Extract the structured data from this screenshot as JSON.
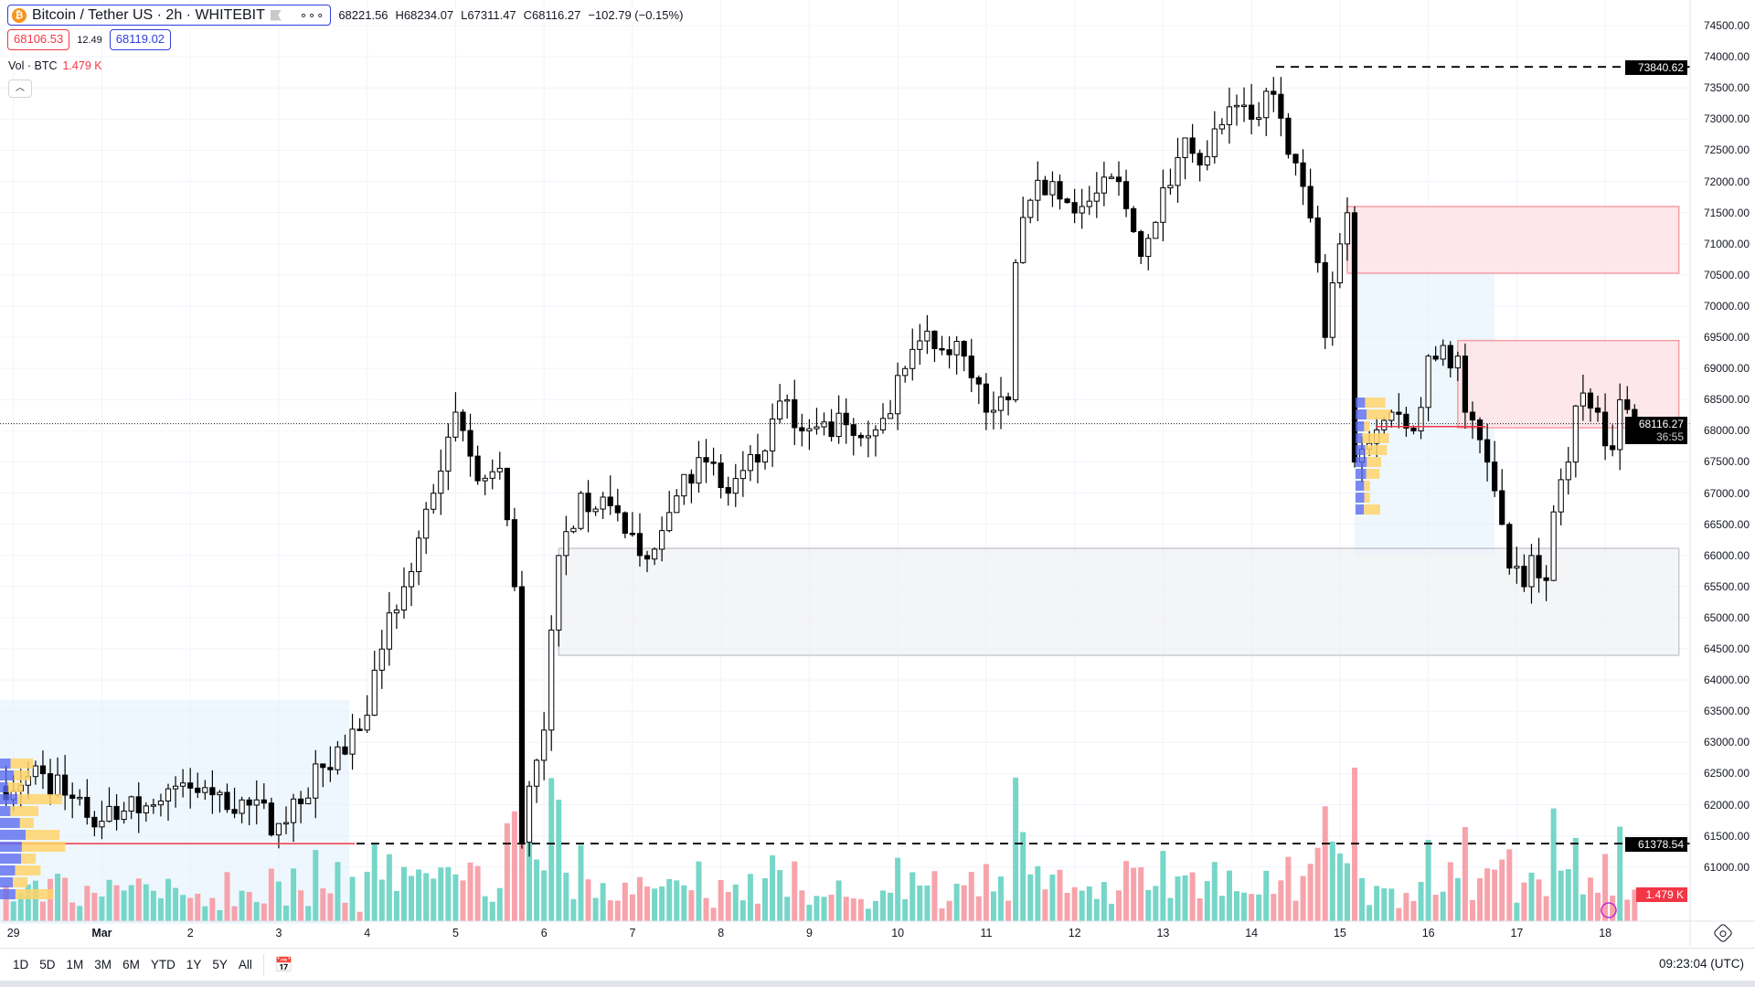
{
  "header": {
    "symbol_title": "Bitcoin / Tether US · 2h · WHITEBIT",
    "more": "∘∘∘",
    "open": "68221.56",
    "high": "H68234.07",
    "low": "L67311.47",
    "close": "C68116.27",
    "change": "−102.79 (−0.15%)"
  },
  "quote": {
    "bid": "68106.53",
    "spread": "12.49",
    "ask": "68119.02"
  },
  "volume_legend": {
    "label": "Vol · BTC",
    "value": "1.479 K"
  },
  "price_axis": {
    "ticks": [
      "74500.00",
      "74000.00",
      "73500.00",
      "73000.00",
      "72500.00",
      "72000.00",
      "71500.00",
      "71000.00",
      "70500.00",
      "70000.00",
      "69500.00",
      "69000.00",
      "68500.00",
      "68000.00",
      "67500.00",
      "67000.00",
      "66500.00",
      "66000.00",
      "65500.00",
      "65000.00",
      "64500.00",
      "64000.00",
      "63500.00",
      "63000.00",
      "62500.00",
      "62000.00",
      "61500.00",
      "61000.00"
    ],
    "high_tag": "73840.62",
    "current_tag": "68116.27",
    "countdown": "36:55",
    "low_tag": "61378.54",
    "volume_tag": "1.479 K"
  },
  "time_axis": {
    "labels": [
      "29",
      "Mar",
      "2",
      "3",
      "4",
      "5",
      "6",
      "7",
      "8",
      "9",
      "10",
      "11",
      "12",
      "13",
      "14",
      "15",
      "16",
      "17",
      "18"
    ]
  },
  "toolbar": {
    "ranges": [
      "1D",
      "5D",
      "1M",
      "3M",
      "6M",
      "YTD",
      "1Y",
      "5Y",
      "All"
    ],
    "clock": "09:23:04 (UTC)"
  },
  "colors": {
    "up_volume": "#76d6c8",
    "down_volume": "#f7a3ab",
    "accent": "#2f3fe0",
    "down": "#f23645",
    "zone_red": "#f7525f",
    "zone_gray": "#9598a1"
  },
  "chart_data": {
    "type": "candlestick",
    "interval": "2h",
    "ylim": [
      60800,
      74700
    ],
    "price_path": [
      [
        "Feb 28 20:00",
        62300
      ],
      [
        "Feb 29 08:00",
        62500
      ],
      [
        "Feb 29 20:00",
        61800
      ],
      [
        "Mar 1 06:00",
        61900
      ],
      [
        "Mar 1 14:00",
        62000
      ],
      [
        "Mar 1 20:00",
        62300
      ],
      [
        "Mar 2 08:00",
        62200
      ],
      [
        "Mar 3 00:00",
        61700
      ],
      [
        "Mar 3 12:00",
        62600
      ],
      [
        "Mar 3 22:00",
        63200
      ],
      [
        "Mar 4 04:00",
        64500
      ],
      [
        "Mar 4 10:00",
        65500
      ],
      [
        "Mar 4 18:00",
        67000
      ],
      [
        "Mar 4 22:00",
        67900
      ],
      [
        "Mar 5 00:00",
        68300
      ],
      [
        "Mar 5 06:00",
        67200
      ],
      [
        "Mar 5 12:00",
        67400
      ],
      [
        "Mar 5 16:00",
        65500
      ],
      [
        "Mar 5 18:00",
        61400
      ],
      [
        "Mar 5 20:00",
        62300
      ],
      [
        "Mar 6 00:00",
        63200
      ],
      [
        "Mar 6 04:00",
        66000
      ],
      [
        "Mar 6 10:00",
        67000
      ],
      [
        "Mar 6 18:00",
        66800
      ],
      [
        "Mar 7 02:00",
        66000
      ],
      [
        "Mar 7 08:00",
        66400
      ],
      [
        "Mar 7 14:00",
        67300
      ],
      [
        "Mar 7 20:00",
        67500
      ],
      [
        "Mar 8 02:00",
        67000
      ],
      [
        "Mar 8 10:00",
        67500
      ],
      [
        "Mar 8 18:00",
        68500
      ],
      [
        "Mar 8 22:00",
        68000
      ],
      [
        "Mar 9 10:00",
        68100
      ],
      [
        "Mar 9 20:00",
        68200
      ],
      [
        "Mar 10 02:00",
        69000
      ],
      [
        "Mar 10 08:00",
        69600
      ],
      [
        "Mar 10 18:00",
        69200
      ],
      [
        "Mar 11 00:00",
        68300
      ],
      [
        "Mar 11 06:00",
        68500
      ],
      [
        "Mar 11 08:00",
        70700
      ],
      [
        "Mar 11 12:00",
        71700
      ],
      [
        "Mar 11 18:00",
        72000
      ],
      [
        "Mar 12 02:00",
        71600
      ],
      [
        "Mar 12 12:00",
        72000
      ],
      [
        "Mar 12 18:00",
        70800
      ],
      [
        "Mar 13 00:00",
        71900
      ],
      [
        "Mar 13 06:00",
        72700
      ],
      [
        "Mar 13 12:00",
        72400
      ],
      [
        "Mar 13 18:00",
        73200
      ],
      [
        "Mar 14 00:00",
        73000
      ],
      [
        "Mar 14 06:00",
        73400
      ],
      [
        "Mar 14 12:00",
        72300
      ],
      [
        "Mar 14 18:00",
        70700
      ],
      [
        "Mar 14 20:00",
        69500
      ],
      [
        "Mar 15 00:00",
        71000
      ],
      [
        "Mar 15 02:00",
        71500
      ],
      [
        "Mar 15 04:00",
        67500
      ],
      [
        "Mar 15 08:00",
        67800
      ],
      [
        "Mar 15 14:00",
        68300
      ],
      [
        "Mar 15 20:00",
        68000
      ],
      [
        "Mar 16 00:00",
        69200
      ],
      [
        "Mar 16 08:00",
        69200
      ],
      [
        "Mar 16 10:00",
        68300
      ],
      [
        "Mar 16 16:00",
        67500
      ],
      [
        "Mar 16 20:00",
        66500
      ],
      [
        "Mar 16 22:00",
        65800
      ],
      [
        "Mar 17 02:00",
        65500
      ],
      [
        "Mar 17 04:00",
        66000
      ],
      [
        "Mar 17 08:00",
        65600
      ],
      [
        "Mar 17 10:00",
        66700
      ],
      [
        "Mar 17 14:00",
        67500
      ],
      [
        "Mar 17 16:00",
        68400
      ],
      [
        "Mar 17 22:00",
        68300
      ],
      [
        "Mar 18 02:00",
        67700
      ],
      [
        "Mar 18 04:00",
        68500
      ],
      [
        "Mar 18 08:00",
        68116.27
      ]
    ],
    "zones": [
      {
        "kind": "supply",
        "from": "Mar 15 02:00",
        "to": "Mar 18 20:00",
        "top": 71600,
        "bottom": 70530
      },
      {
        "kind": "supply",
        "from": "Mar 16 08:00",
        "to": "Mar 18 20:00",
        "top": 69450,
        "bottom": 68050
      },
      {
        "kind": "demand",
        "from": "Mar 6 04:00",
        "to": "Mar 18 20:00",
        "top": 66115,
        "bottom": 64400
      }
    ],
    "levels": [
      {
        "price": 73840.62,
        "style": "dashed"
      },
      {
        "price": 61378.54,
        "style": "dashed"
      },
      {
        "price": 68116.27,
        "style": "dotted"
      }
    ]
  }
}
